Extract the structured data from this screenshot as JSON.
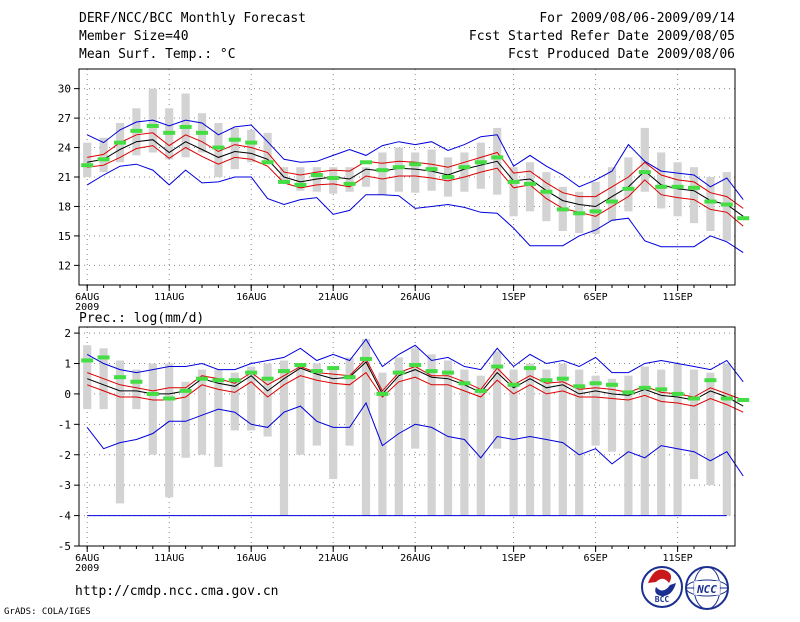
{
  "header": {
    "left": [
      "DERF/NCC/BCC Monthly Forecast",
      "Member Size=40",
      "Mean Surf. Temp.: °C"
    ],
    "right": [
      "For 2009/08/06-2009/09/14",
      "Fcst Started Refer Date 2009/08/05",
      "Fcst Produced Date 2009/08/06"
    ]
  },
  "footer": {
    "url": "http://cmdp.ncc.cma.gov.cn",
    "credit": "GrADS: COLA/IGES",
    "logo_left_text": "BCC",
    "logo_right_text": "NCC"
  },
  "colors": {
    "box": "#d3d3d3",
    "observed": "#44dd44",
    "mean": "#000000",
    "inner_spread": "#dd0000",
    "outer_spread": "#0000dd",
    "grid": "#888888"
  },
  "chart_data": [
    {
      "type": "line",
      "title": "Mean Surf. Temp.: °C",
      "ylim": [
        10,
        32
      ],
      "yticks": [
        12,
        15,
        18,
        21,
        24,
        27,
        30
      ],
      "xlim": [
        -0.5,
        39.5
      ],
      "xticks": [
        {
          "day": 0,
          "label": "6AUG",
          "sub": "2009"
        },
        {
          "day": 5,
          "label": "11AUG"
        },
        {
          "day": 10,
          "label": "16AUG"
        },
        {
          "day": 15,
          "label": "21AUG"
        },
        {
          "day": 20,
          "label": "26AUG"
        },
        {
          "day": 26,
          "label": "1SEP"
        },
        {
          "day": 31,
          "label": "6SEP"
        },
        {
          "day": 36,
          "label": "11SEP"
        }
      ],
      "box_low": [
        21.0,
        21.5,
        22.5,
        23.2,
        23.5,
        22.8,
        23.0,
        23.5,
        21.0,
        21.8,
        22.5,
        22.5,
        20.6,
        19.6,
        19.5,
        19.3,
        19.5,
        20.0,
        19.2,
        19.5,
        19.4,
        19.6,
        19.0,
        19.5,
        19.8,
        19.2,
        17.0,
        17.5,
        16.5,
        15.5,
        15.3,
        15.2,
        16.5,
        17.5,
        19.5,
        17.8,
        17.0,
        16.3,
        15.5,
        14.5,
        13.5
      ],
      "box_high": [
        24.5,
        25.0,
        26.5,
        28.0,
        30.0,
        28.0,
        29.5,
        27.5,
        26.5,
        26.0,
        25.8,
        25.5,
        22.0,
        22.0,
        22.0,
        22.0,
        22.0,
        22.0,
        23.5,
        24.0,
        23.5,
        23.8,
        23.0,
        23.5,
        24.5,
        26.0,
        22.0,
        22.5,
        21.5,
        20.0,
        19.5,
        20.5,
        22.0,
        23.0,
        26.0,
        23.5,
        22.5,
        22.0,
        21.0,
        21.5,
        19.0
      ],
      "observed": [
        22.2,
        22.8,
        24.5,
        25.7,
        26.2,
        25.5,
        26.1,
        25.5,
        24.0,
        24.8,
        24.5,
        22.5,
        20.5,
        20.2,
        21.2,
        20.9,
        20.3,
        22.5,
        21.7,
        22.0,
        22.3,
        21.8,
        21.0,
        22.0,
        22.5,
        23.0,
        20.5,
        20.3,
        19.5,
        17.7,
        17.3,
        17.5,
        18.5,
        19.8,
        21.5,
        20.0,
        20.0,
        19.9,
        18.5,
        18.2,
        16.8
      ],
      "mean": [
        22.5,
        22.8,
        23.8,
        24.6,
        24.8,
        23.5,
        24.6,
        23.8,
        23.0,
        23.6,
        23.4,
        22.8,
        21.0,
        20.5,
        20.8,
        21.0,
        20.8,
        21.8,
        21.6,
        21.9,
        21.8,
        21.6,
        21.2,
        21.8,
        22.2,
        22.6,
        20.6,
        20.8,
        19.6,
        18.6,
        18.2,
        18.0,
        19.0,
        20.0,
        21.6,
        20.2,
        19.8,
        19.6,
        18.6,
        18.2,
        17.0
      ],
      "inner_high": [
        23.0,
        23.3,
        24.5,
        25.3,
        25.5,
        24.2,
        25.3,
        24.6,
        23.6,
        24.3,
        24.0,
        23.5,
        21.5,
        21.2,
        21.5,
        21.7,
        21.6,
        22.6,
        22.4,
        22.6,
        22.5,
        22.3,
        22.0,
        22.5,
        23.0,
        23.5,
        21.4,
        21.6,
        20.4,
        19.4,
        19.0,
        19.0,
        20.0,
        21.0,
        22.5,
        21.2,
        20.7,
        20.5,
        19.4,
        19.0,
        17.8
      ],
      "inner_low": [
        22.0,
        22.2,
        23.0,
        23.9,
        24.2,
        22.9,
        24.0,
        23.1,
        22.3,
        23.0,
        22.8,
        22.1,
        20.4,
        19.9,
        20.2,
        20.3,
        20.0,
        21.1,
        20.8,
        21.1,
        21.1,
        20.9,
        20.6,
        21.0,
        21.5,
        21.9,
        19.9,
        20.2,
        18.8,
        17.8,
        17.4,
        17.0,
        18.0,
        19.0,
        20.7,
        19.2,
        18.9,
        18.7,
        17.7,
        17.4,
        16.0
      ],
      "outer_high": [
        25.3,
        24.5,
        25.8,
        26.6,
        26.8,
        26.2,
        26.8,
        26.5,
        25.3,
        26.1,
        26.3,
        24.6,
        22.8,
        22.5,
        22.6,
        23.2,
        23.8,
        23.2,
        24.2,
        24.6,
        24.3,
        24.6,
        23.7,
        24.3,
        25.1,
        25.3,
        22.1,
        23.2,
        22.1,
        21.2,
        20.0,
        20.7,
        21.6,
        24.3,
        22.6,
        21.6,
        21.4,
        21.2,
        20.0,
        20.9,
        18.7
      ],
      "outer_low": [
        20.2,
        21.2,
        22.1,
        22.3,
        21.7,
        20.2,
        21.7,
        20.4,
        20.5,
        21.0,
        21.0,
        18.8,
        18.2,
        18.7,
        18.9,
        17.2,
        17.6,
        19.2,
        19.2,
        19.1,
        17.8,
        18.0,
        18.2,
        17.9,
        17.4,
        17.3,
        15.8,
        14.0,
        14.0,
        14.0,
        15.0,
        15.6,
        16.6,
        16.8,
        14.5,
        13.9,
        13.9,
        13.9,
        15.0,
        14.4,
        13.3
      ]
    },
    {
      "type": "line",
      "title": "Prec.: log(mm/d)",
      "ylim": [
        -5,
        2.2
      ],
      "yticks": [
        -5,
        -4,
        -3,
        -2,
        -1,
        0,
        1,
        2
      ],
      "xlim": [
        -0.5,
        39.5
      ],
      "xticks": [
        {
          "day": 0,
          "label": "6AUG",
          "sub": "2009"
        },
        {
          "day": 5,
          "label": "11AUG"
        },
        {
          "day": 10,
          "label": "16AUG"
        },
        {
          "day": 15,
          "label": "21AUG"
        },
        {
          "day": 20,
          "label": "26AUG"
        },
        {
          "day": 26,
          "label": "1SEP"
        },
        {
          "day": 31,
          "label": "6SEP"
        },
        {
          "day": 36,
          "label": "11SEP"
        }
      ],
      "box_low": [
        -0.5,
        -0.5,
        -3.6,
        -0.5,
        -2.0,
        -3.4,
        -2.1,
        -2.0,
        -2.4,
        -1.2,
        -1.2,
        -1.4,
        -4.0,
        -2.0,
        -1.7,
        -2.8,
        -1.7,
        -4.0,
        -4.0,
        -4.0,
        -1.8,
        -4.0,
        -4.0,
        -4.0,
        -4.0,
        -1.8,
        -4.0,
        -4.0,
        -4.0,
        -4.0,
        -4.0,
        -1.7,
        -1.9,
        -4.0,
        -4.0,
        -4.0,
        -4.0,
        -2.8,
        -3.0,
        -4.0,
        -4.0
      ],
      "box_high": [
        1.6,
        1.5,
        1.1,
        0.8,
        1.0,
        1.0,
        0.4,
        0.8,
        0.8,
        0.7,
        0.9,
        1.0,
        1.1,
        1.0,
        1.0,
        0.9,
        1.2,
        1.8,
        0.7,
        1.2,
        1.5,
        1.3,
        1.1,
        0.8,
        0.6,
        1.4,
        0.8,
        1.0,
        0.8,
        1.0,
        0.8,
        0.6,
        0.5,
        0.6,
        0.9,
        0.8,
        1.0,
        0.8,
        0.7,
        1.0,
        0.5
      ],
      "observed": [
        1.1,
        1.2,
        0.55,
        0.4,
        0.0,
        -0.15,
        0.1,
        0.5,
        0.45,
        0.45,
        0.7,
        0.5,
        0.75,
        0.95,
        0.75,
        0.85,
        0.55,
        1.15,
        0.0,
        0.7,
        0.95,
        0.75,
        0.7,
        0.35,
        0.1,
        0.9,
        0.3,
        0.85,
        0.45,
        0.5,
        0.25,
        0.35,
        0.3,
        0.05,
        0.2,
        0.15,
        0.0,
        -0.15,
        0.45,
        -0.15,
        -0.2
      ],
      "mean": [
        0.5,
        0.3,
        0.1,
        0.1,
        0.0,
        0.0,
        0.1,
        0.5,
        0.35,
        0.25,
        0.6,
        0.1,
        0.5,
        0.85,
        0.65,
        0.5,
        0.55,
        1.05,
        0.0,
        0.6,
        0.8,
        0.55,
        0.5,
        0.3,
        0.05,
        0.7,
        0.2,
        0.5,
        0.2,
        0.3,
        0.0,
        0.1,
        0.0,
        -0.05,
        0.15,
        -0.05,
        -0.1,
        -0.2,
        0.1,
        -0.1,
        -0.4
      ],
      "inner_high": [
        0.7,
        0.5,
        0.3,
        0.2,
        0.1,
        0.2,
        0.2,
        0.6,
        0.5,
        0.35,
        0.7,
        0.3,
        0.6,
        0.9,
        0.7,
        0.65,
        0.6,
        1.15,
        0.1,
        0.7,
        0.9,
        0.6,
        0.6,
        0.4,
        0.15,
        0.85,
        0.3,
        0.6,
        0.35,
        0.4,
        0.15,
        0.2,
        0.15,
        0.05,
        0.25,
        0.05,
        0.0,
        -0.1,
        0.2,
        0.0,
        -0.2
      ],
      "inner_low": [
        0.3,
        0.1,
        -0.1,
        -0.1,
        -0.2,
        -0.2,
        -0.1,
        0.3,
        0.15,
        0.05,
        0.4,
        -0.1,
        0.3,
        0.6,
        0.45,
        0.35,
        0.3,
        0.7,
        -0.1,
        0.4,
        0.55,
        0.3,
        0.3,
        0.1,
        -0.1,
        0.45,
        0.0,
        0.3,
        0.0,
        0.1,
        -0.1,
        -0.1,
        -0.15,
        -0.2,
        -0.05,
        -0.25,
        -0.3,
        -0.4,
        -0.15,
        -0.35,
        -0.6
      ],
      "outer_high": [
        1.3,
        1.0,
        0.8,
        0.7,
        0.8,
        0.9,
        0.9,
        1.0,
        0.8,
        0.8,
        1.0,
        1.1,
        1.2,
        1.5,
        1.1,
        1.3,
        1.1,
        1.8,
        0.9,
        1.3,
        1.6,
        1.1,
        1.2,
        0.9,
        0.8,
        1.5,
        0.9,
        1.3,
        1.0,
        1.1,
        0.9,
        1.2,
        0.7,
        0.7,
        1.0,
        1.1,
        1.0,
        0.9,
        0.8,
        1.1,
        0.4
      ],
      "outer_low": [
        -1.1,
        -1.8,
        -1.6,
        -1.5,
        -1.3,
        -0.9,
        -0.9,
        -0.7,
        -0.5,
        -0.6,
        -1.0,
        -1.1,
        -0.6,
        -0.4,
        -0.9,
        -1.1,
        -1.1,
        -0.3,
        -1.7,
        -1.3,
        -1.0,
        -1.1,
        -1.4,
        -1.5,
        -2.1,
        -1.4,
        -1.5,
        -1.4,
        -1.5,
        -1.6,
        -2.0,
        -1.8,
        -2.3,
        -1.9,
        -2.1,
        -1.7,
        -1.8,
        -1.9,
        -2.2,
        -1.9,
        -2.7
      ],
      "baseline": -4.0
    }
  ]
}
